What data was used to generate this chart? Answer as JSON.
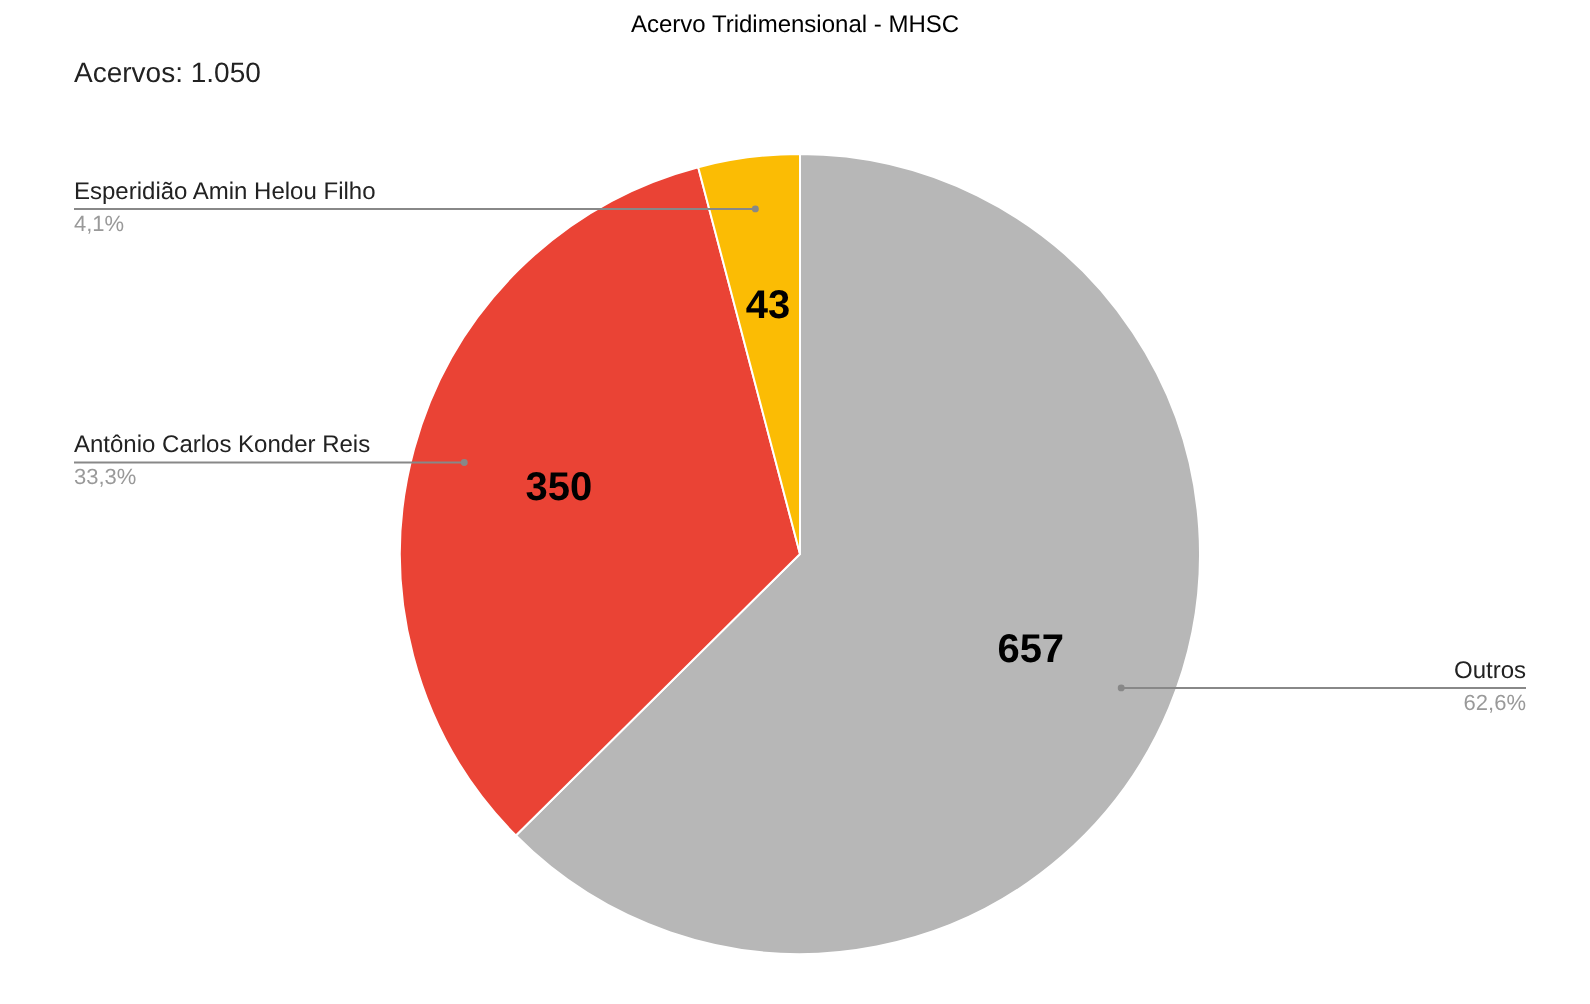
{
  "chart_data": {
    "type": "pie",
    "title": "Acervo Tridimensional - MHSC",
    "categories": [
      "Outros",
      "Antônio Carlos Konder Reis",
      "Esperidião Amin Helou Filho"
    ],
    "values": [
      657,
      350,
      43
    ],
    "colors": [
      "#b7b7b7",
      "#ea4335",
      "#fbbc04"
    ],
    "data_labels": true,
    "legend": false,
    "annotations": [
      "Acervos: 1.050",
      {
        "text": "62,6%",
        "x": "Outros"
      },
      {
        "text": "33,3%",
        "x": "Antônio Carlos Konder Reis"
      },
      {
        "text": "4,1%",
        "x": "Esperidião Amin Helou Filho"
      }
    ]
  }
}
